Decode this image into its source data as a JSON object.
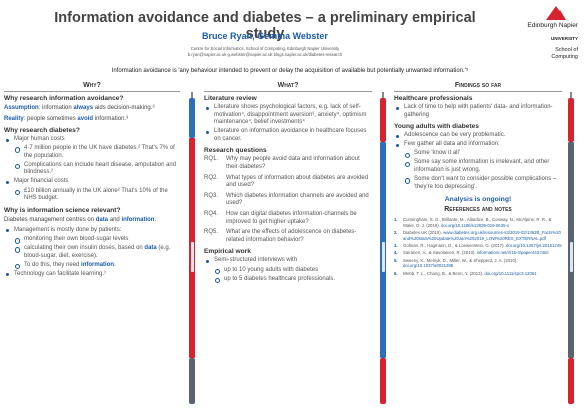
{
  "header": {
    "title": "Information avoidance and diabetes – a preliminary empirical study",
    "authors": "Bruce Ryan, Gemma Webster",
    "affiliation_line1": "Centre for Social Informatics, School of Computing, Edinburgh Napier University",
    "affiliation_line2": "b.ryan@napier.ac.uk  g.webster@napier.ac.uk  blogs.napier.ac.uk/diabetes-research",
    "definition": "Information avoidance is 'any behaviour intended to prevent or delay the acquisition of available but potentially unwanted information.'⁵"
  },
  "logo": {
    "name_line1": "Edinburgh Napier",
    "name_line2": "UNIVERSITY",
    "school_line1": "School of",
    "school_line2": "Computing",
    "color": "#d6232f"
  },
  "col1": {
    "heading": "Why?",
    "sec1": {
      "title": "Why research information avoidance?",
      "assumption_label": "Assumption",
      "assumption_mid": ": information ",
      "assumption_always": "always",
      "assumption_end": " aids decision-making.⁶",
      "reality_label": "Reality",
      "reality_mid": ": people sometimes ",
      "reality_avoid": "avoid",
      "reality_end": " information.³"
    },
    "sec2": {
      "title": "Why research diabetes?",
      "b1": "Major human costs",
      "b1a": "4·7 million people in the UK have diabetes.² That's 7% of the population.",
      "b1b": "Complications can include heart disease, amputation and blindness.²",
      "b2": "Major financial costs",
      "b2a": "£10 billion annually in the UK alone² That's 10% of the NHS budget."
    },
    "sec3": {
      "title": "Why is information science relevant?",
      "intro_start": "Diabetes management centres on ",
      "intro_data": "data",
      "intro_and": " and ",
      "intro_info": "information",
      "intro_end": ".",
      "b1": "Management is mostly done by patients:",
      "b1a": "monitoring their own blood-sugar levels",
      "b1b_start": "calculating their own insulin doses, based on ",
      "b1b_data": "data",
      "b1b_end": " (e.g. blood-sugar, diet, exercise).",
      "b1c_start": "To do this, they need ",
      "b1c_info": "information",
      "b1c_end": ".",
      "b2": "Technology can facilitate learning.¹"
    }
  },
  "col2": {
    "heading": "What?",
    "lit": {
      "title": "Literature review",
      "b1": "Literature shows psychological factors, e.g. lack of self-motivation⁴, disappointment aversion³, anxiety⁴, optimism maintenance⁴, belief investments⁴",
      "b2": "Literature on information avoidance in healthcare focuses on cancer."
    },
    "rq": {
      "title": "Research questions",
      "items": [
        {
          "num": "RQ1.",
          "text": "Why may people avoid data and information about their diabetes?"
        },
        {
          "num": "RQ2.",
          "text": "What types of information about diabetes are avoided and used?"
        },
        {
          "num": "RQ3.",
          "text": "Which diabetes information channels are avoided and used?"
        },
        {
          "num": "RQ4.",
          "text": "How can digital diabetes information-channels be improved to get higher uptake?"
        },
        {
          "num": "RQ5.",
          "text": "What are the effects of adolescence on diabetes-related information behavior?"
        }
      ]
    },
    "emp": {
      "title": "Empirical work",
      "b1": "Semi-structured interviews with",
      "b1a": "up to 10 young adults with diabetes",
      "b1b": "up to 5 diabetes healthcare professionals."
    }
  },
  "col3": {
    "heading": "Findings so far",
    "hp": {
      "title": "Healthcare professionals",
      "b1": "Lack of time to help with patients' data- and information-gathering"
    },
    "ya": {
      "title": "Young adults with diabetes",
      "b1": "Adolescence can be very problematic.",
      "b2": "Few gather all data and information:",
      "b2a": "Some 'know it all'",
      "b2b": "Some say some information is irrelevant, and other information is just wrong.",
      "b2c": "Some don't want to consider possible complications – 'they're too depressing'."
    },
    "ongoing": "Analysis is ongoing!",
    "refs_title": "References and notes",
    "refs": [
      {
        "num": "1.",
        "text": "Cunningham, S. G., Brillante, M., Allardice, B., Conway, N., McAlpine, R. R., & Wake, D. J. (2019). ",
        "link": "doi.org/10.1186/s12939-019-0635-x"
      },
      {
        "num": "2.",
        "text": "Diabetes UK (2019). ",
        "link": "www.diabetes.org.uk/resources-s3/2019-02/1362B_Facts%20and%20stats%20Update%20Jan%202019_LOW%20RES_EXTERNAL.pdf"
      },
      {
        "num": "3.",
        "text": "Golman, R., Hagmann, D., & Loewenstein, G. (2017). ",
        "link": "doi.org/10.1257/jel.20151245"
      },
      {
        "num": "4.",
        "text": "Sairanen, A., & Savolainen, R. (2010). ",
        "link": "informationr.net/ir/15-4/paper443.html"
      },
      {
        "num": "5.",
        "text": "Sweeny, K., Melnyk, D., Miller, W., & Shepperd, J. A. (2010). ",
        "link": "doi.org/10.1037/a0021288"
      },
      {
        "num": "6.",
        "text": "Webb, T. L., Chang, B., & Benn, Y. (2013). ",
        "link": "doi.org/10.1111/spc3.12061"
      }
    ]
  },
  "colors": {
    "accent_blue": "#1a5ca8",
    "pen_red": "#d6232f",
    "pen_blue": "#2a6fb8",
    "pen_grey": "#5a6470"
  }
}
